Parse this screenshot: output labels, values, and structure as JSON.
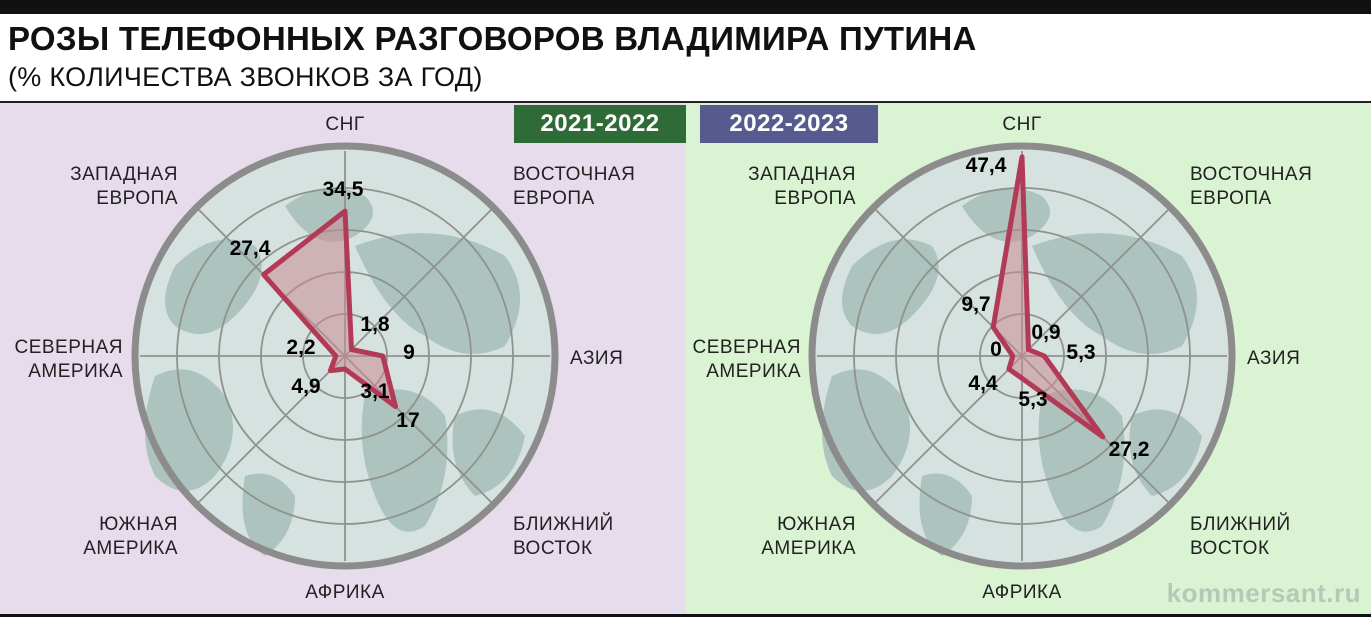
{
  "header": {
    "title": "РОЗЫ ТЕЛЕФОННЫХ РАЗГОВОРОВ ВЛАДИМИРА ПУТИНА",
    "subtitle": "(% КОЛИЧЕСТВА ЗВОНКОВ ЗА ГОД)"
  },
  "watermark": "kommersant.ru",
  "colors": {
    "panel_left_bg": "#e6dcec",
    "panel_right_bg": "#daf3d2",
    "badge_left": "#2f6b37",
    "badge_right": "#575a8f",
    "polygon_stroke": "#b23a56",
    "polygon_fill": "#c98a94"
  },
  "chart_data": [
    {
      "type": "radar",
      "period": "2021-2022",
      "categories": [
        [
          "СНГ"
        ],
        [
          "ВОСТОЧНАЯ",
          "ЕВРОПА"
        ],
        [
          "АЗИЯ"
        ],
        [
          "БЛИЖНИЙ",
          "ВОСТОК"
        ],
        [
          "АФРИКА"
        ],
        [
          "ЮЖНАЯ",
          "АМЕРИКА"
        ],
        [
          "СЕВЕРНАЯ",
          "АМЕРИКА"
        ],
        [
          "ЗАПАДНАЯ",
          "ЕВРОПА"
        ]
      ],
      "values": [
        34.5,
        1.8,
        9,
        17,
        3.1,
        4.9,
        2.2,
        27.4
      ],
      "value_labels": [
        "34,5",
        "1,8",
        "9",
        "17",
        "3,1",
        "4,9",
        "2,2",
        "27,4"
      ],
      "rlim": [
        0,
        50
      ],
      "unit": "%"
    },
    {
      "type": "radar",
      "period": "2022-2023",
      "categories": [
        [
          "СНГ"
        ],
        [
          "ВОСТОЧНАЯ",
          "ЕВРОПА"
        ],
        [
          "АЗИЯ"
        ],
        [
          "БЛИЖНИЙ",
          "ВОСТОК"
        ],
        [
          "АФРИКА"
        ],
        [
          "ЮЖНАЯ",
          "АМЕРИКА"
        ],
        [
          "СЕВЕРНАЯ",
          "АМЕРИКА"
        ],
        [
          "ЗАПАДНАЯ",
          "ЕВРОПА"
        ]
      ],
      "values": [
        47.4,
        0.9,
        5.3,
        27.2,
        5.3,
        4.4,
        0,
        9.7
      ],
      "value_labels": [
        "47,4",
        "0,9",
        "5,3",
        "27,2",
        "5,3",
        "4,4",
        "0",
        "9,7"
      ],
      "rlim": [
        0,
        50
      ],
      "unit": "%"
    }
  ]
}
